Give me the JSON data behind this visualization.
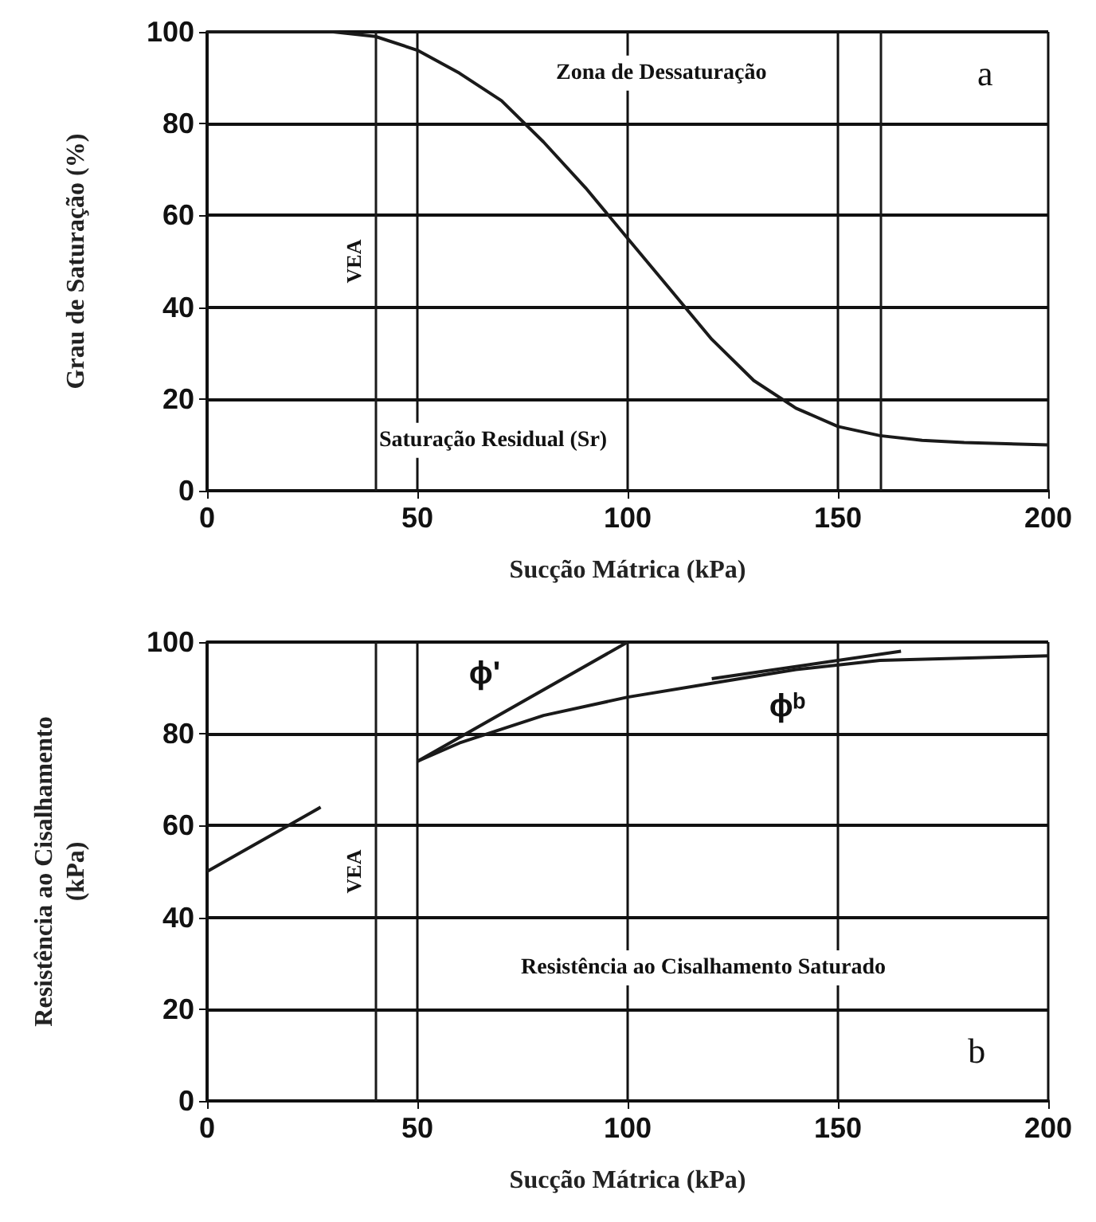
{
  "chart_data": [
    {
      "type": "line",
      "xlabel": "Sucção Mátrica (kPa)",
      "ylabel": "Grau de Saturação (%)",
      "xlim": [
        0,
        200
      ],
      "ylim": [
        0,
        100
      ],
      "xticks": [
        0,
        50,
        100,
        150,
        200
      ],
      "yticks": [
        0,
        20,
        40,
        60,
        80,
        100
      ],
      "grid": true,
      "x": [
        0,
        20,
        30,
        40,
        50,
        60,
        70,
        80,
        90,
        100,
        110,
        120,
        130,
        140,
        150,
        160,
        170,
        180,
        200
      ],
      "series": [
        {
          "color": "#1a1a1a",
          "values": [
            100,
            100,
            100,
            99,
            96,
            91,
            85,
            76,
            66,
            55,
            44,
            33,
            24,
            18,
            14,
            12,
            11,
            10.5,
            10
          ]
        }
      ],
      "ref_lines": [
        {
          "axis": "x",
          "value": 40,
          "label": "VEA"
        },
        {
          "axis": "x",
          "value": 160
        }
      ],
      "annotations": [
        "Zona de Dessaturação",
        "Saturação Residual (Sr)",
        "a"
      ]
    },
    {
      "type": "line",
      "xlabel": "Sucção Mátrica (kPa)",
      "ylabel": "Resistência ao Cisalhamento (kPa)",
      "xlim": [
        0,
        200
      ],
      "ylim": [
        0,
        100
      ],
      "xticks": [
        0,
        50,
        100,
        150,
        200
      ],
      "yticks": [
        0,
        20,
        40,
        60,
        80,
        100
      ],
      "grid": true,
      "series": [
        {
          "color": "#1a1a1a",
          "x": [
            0,
            27,
            38,
            50,
            100
          ],
          "values": [
            50,
            64,
            null,
            74,
            100
          ]
        },
        {
          "color": "#1a1a1a",
          "x": [
            50,
            60,
            70,
            80,
            100,
            120,
            140,
            160,
            200
          ],
          "values": [
            74,
            78,
            81,
            84,
            88,
            91,
            94,
            96,
            97
          ]
        },
        {
          "color": "#1a1a1a",
          "x": [
            120,
            165
          ],
          "values": [
            92,
            98
          ]
        }
      ],
      "ref_lines": [
        {
          "axis": "x",
          "value": 40,
          "label": "VEA"
        }
      ],
      "annotations": [
        "ϕ'",
        "ϕᵇ",
        "Resistência ao Cisalhamento Saturado",
        "b"
      ]
    }
  ]
}
